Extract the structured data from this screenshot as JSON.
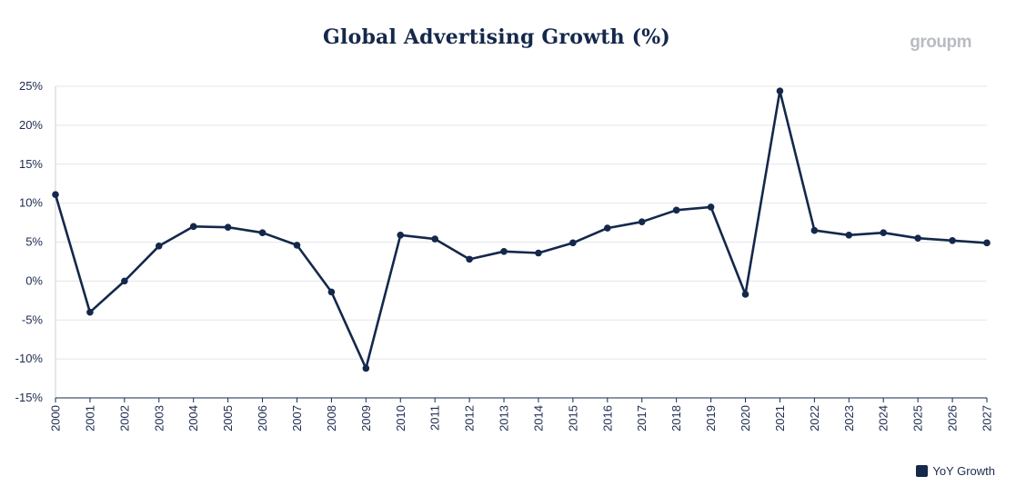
{
  "chart_data": {
    "type": "line",
    "title": "Global Advertising Growth (%)",
    "brand": "groupm",
    "x": [
      "2000",
      "2001",
      "2002",
      "2003",
      "2004",
      "2005",
      "2006",
      "2007",
      "2008",
      "2009",
      "2010",
      "2011",
      "2012",
      "2013",
      "2014",
      "2015",
      "2016",
      "2017",
      "2018",
      "2019",
      "2020",
      "2021",
      "2022",
      "2023",
      "2024",
      "2025",
      "2026",
      "2027"
    ],
    "series": [
      {
        "name": "YoY Growth",
        "color": "#14284b",
        "values": [
          11.1,
          -4.0,
          0.0,
          4.5,
          7.0,
          6.9,
          6.2,
          4.6,
          -1.4,
          -11.2,
          5.9,
          5.4,
          2.8,
          3.8,
          3.6,
          4.9,
          6.8,
          7.6,
          9.1,
          9.5,
          -1.7,
          24.4,
          6.5,
          5.9,
          6.2,
          5.5,
          5.2,
          4.9
        ]
      }
    ],
    "ylim": [
      -15,
      25
    ],
    "yticks": [
      25,
      20,
      15,
      10,
      5,
      0,
      -5,
      -10,
      -15
    ],
    "ytick_labels": [
      "25%",
      "20%",
      "15%",
      "10%",
      "5%",
      "0%",
      "-5%",
      "-10%",
      "-15%"
    ],
    "grid": true,
    "legend_position": "bottom-right",
    "xlabel": "",
    "ylabel": ""
  }
}
